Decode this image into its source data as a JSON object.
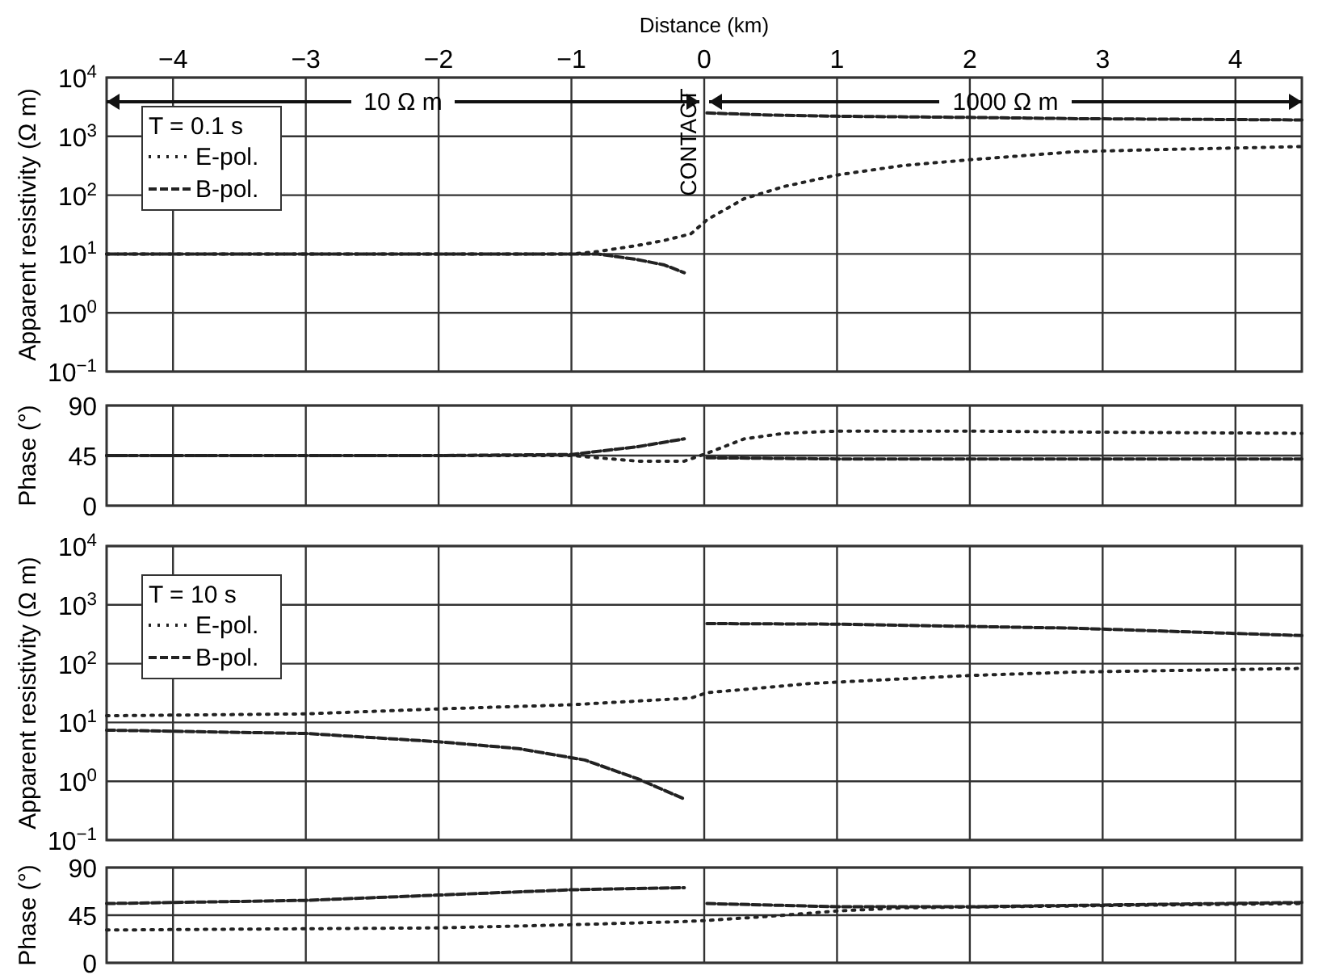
{
  "chart_data": [
    {
      "type": "line",
      "xlabel": "Distance (km)",
      "ylabel": "Apparent resistivity (Ω m)",
      "legend_title": "T = 0.1 s",
      "legend": "top left",
      "grid": true,
      "log": "y",
      "xlim": [
        -4.5,
        4.5
      ],
      "xticks": [
        {
          "value": -4,
          "label": "−4"
        },
        {
          "value": -3,
          "label": "−3"
        },
        {
          "value": -2,
          "label": "−2"
        },
        {
          "value": -1,
          "label": "−1"
        },
        0,
        1,
        2,
        3,
        4
      ],
      "ylim": [
        0.1,
        10000
      ],
      "yticks": [
        {
          "value": 0.1,
          "label": "10$^{−1}$"
        },
        {
          "value": 1,
          "label": "10$^{0}$"
        },
        {
          "value": 10,
          "label": "10$^{1}$"
        },
        {
          "value": 100,
          "label": "10$^{2}$"
        },
        {
          "value": 1000,
          "label": "10$^{3}$"
        },
        {
          "value": 10000,
          "label": "10$^{4}$"
        }
      ],
      "annotations": [
        "10 Ω m",
        "1000 Ω m",
        "CONTACT"
      ],
      "series": [
        {
          "name": "E-pol.",
          "color": "#222222",
          "line_style": "dotted",
          "x": [
            -4.5,
            -4,
            -3,
            -2,
            -1,
            -0.8,
            -0.5,
            -0.3,
            -0.1,
            0.02,
            0.3,
            0.6,
            1,
            1.5,
            2,
            2.8,
            3.5,
            4.5
          ],
          "values": [
            10,
            10,
            10,
            10,
            10,
            11,
            14,
            17,
            22,
            38,
            87,
            140,
            220,
            320,
            400,
            550,
            600,
            670
          ]
        },
        {
          "name": "B-pol.",
          "color": "#222222",
          "line_style": "dashed",
          "x": [
            -4.5,
            -3,
            -2,
            -1,
            -0.8,
            -0.5,
            -0.3,
            -0.15,
            -0.05,
            0.02,
            0.5,
            1,
            2,
            2.8,
            4.5
          ],
          "values": [
            10,
            10,
            10,
            10,
            10,
            8,
            6.5,
            4.8,
            null,
            2500,
            2300,
            2200,
            2100,
            2000,
            1900
          ]
        }
      ]
    },
    {
      "type": "line",
      "ylabel": "Phase (°)",
      "grid": true,
      "tick_labels": "y",
      "xlim": [
        -4.5,
        4.5
      ],
      "xticks": [
        -4,
        -3,
        -2,
        -1,
        0,
        1,
        2,
        3,
        4
      ],
      "ylim": [
        0,
        90
      ],
      "yticks": [
        0,
        45,
        90
      ],
      "series": [
        {
          "color": "#222222",
          "line_style": "dotted",
          "x": [
            -4.5,
            -2,
            -1,
            -0.5,
            -0.15,
            0.02,
            0.3,
            0.6,
            1,
            2,
            3,
            4.5
          ],
          "values": [
            45,
            45,
            45,
            40,
            40,
            47,
            60,
            65,
            67,
            67,
            66,
            65
          ]
        },
        {
          "color": "#222222",
          "line_style": "dashed",
          "x": [
            -4.5,
            -2,
            -1,
            -0.5,
            -0.15,
            -0.05,
            0.02,
            1,
            2,
            4.5
          ],
          "values": [
            45,
            45,
            46,
            53,
            60,
            null,
            43,
            42,
            42,
            42
          ]
        }
      ]
    },
    {
      "type": "line",
      "ylabel": "Apparent resistivity (Ω m)",
      "legend_title": "T = 10 s",
      "legend": "top left",
      "grid": true,
      "log": "y",
      "tick_labels": "y",
      "xlim": [
        -4.5,
        4.5
      ],
      "xticks": [
        -4,
        -3,
        -2,
        -1,
        0,
        1,
        2,
        3,
        4
      ],
      "ylim": [
        0.1,
        10000
      ],
      "yticks": [
        {
          "value": 0.1,
          "label": "10$^{−1}$"
        },
        {
          "value": 1,
          "label": "10$^{0}$"
        },
        {
          "value": 10,
          "label": "10$^{1}$"
        },
        {
          "value": 100,
          "label": "10$^{2}$"
        },
        {
          "value": 1000,
          "label": "10$^{3}$"
        },
        {
          "value": 10000,
          "label": "10$^{4}$"
        }
      ],
      "series": [
        {
          "name": "E-pol.",
          "color": "#222222",
          "line_style": "dotted",
          "x": [
            -4.5,
            -3,
            -2,
            -1,
            -0.1,
            0.02,
            0.8,
            2,
            2.8,
            4.5
          ],
          "values": [
            13,
            14,
            17,
            20,
            26,
            32,
            46,
            63,
            72,
            83
          ]
        },
        {
          "name": "B-pol.",
          "color": "#222222",
          "line_style": "dashed",
          "x": [
            -4.5,
            -3,
            -2,
            -1.4,
            -0.9,
            -0.5,
            -0.15,
            -0.05,
            0.02,
            1,
            2.8,
            4.5
          ],
          "values": [
            7.4,
            6.5,
            4.7,
            3.6,
            2.3,
            1.1,
            0.5,
            null,
            480,
            470,
            400,
            300
          ]
        }
      ]
    },
    {
      "type": "line",
      "ylabel": "Phase (°)",
      "grid": true,
      "tick_labels": "y",
      "xlim": [
        -4.5,
        4.5
      ],
      "xticks": [
        -4,
        -3,
        -2,
        -1,
        0,
        1,
        2,
        3,
        4
      ],
      "ylim": [
        0,
        90
      ],
      "yticks": [
        0,
        45,
        90
      ],
      "series": [
        {
          "color": "#222222",
          "line_style": "dotted",
          "x": [
            -4.5,
            -2,
            -1,
            -0.15,
            0.02,
            0.5,
            1,
            1.5,
            3,
            4.5
          ],
          "values": [
            31,
            33,
            36,
            39,
            40,
            44,
            49,
            52,
            54,
            56
          ]
        },
        {
          "color": "#222222",
          "line_style": "dashed",
          "x": [
            -4.5,
            -3,
            -2,
            -1,
            -0.15,
            -0.05,
            0.02,
            1,
            2,
            4.5
          ],
          "values": [
            56,
            59,
            64,
            69,
            71,
            null,
            56,
            53,
            53,
            57
          ]
        }
      ]
    }
  ]
}
